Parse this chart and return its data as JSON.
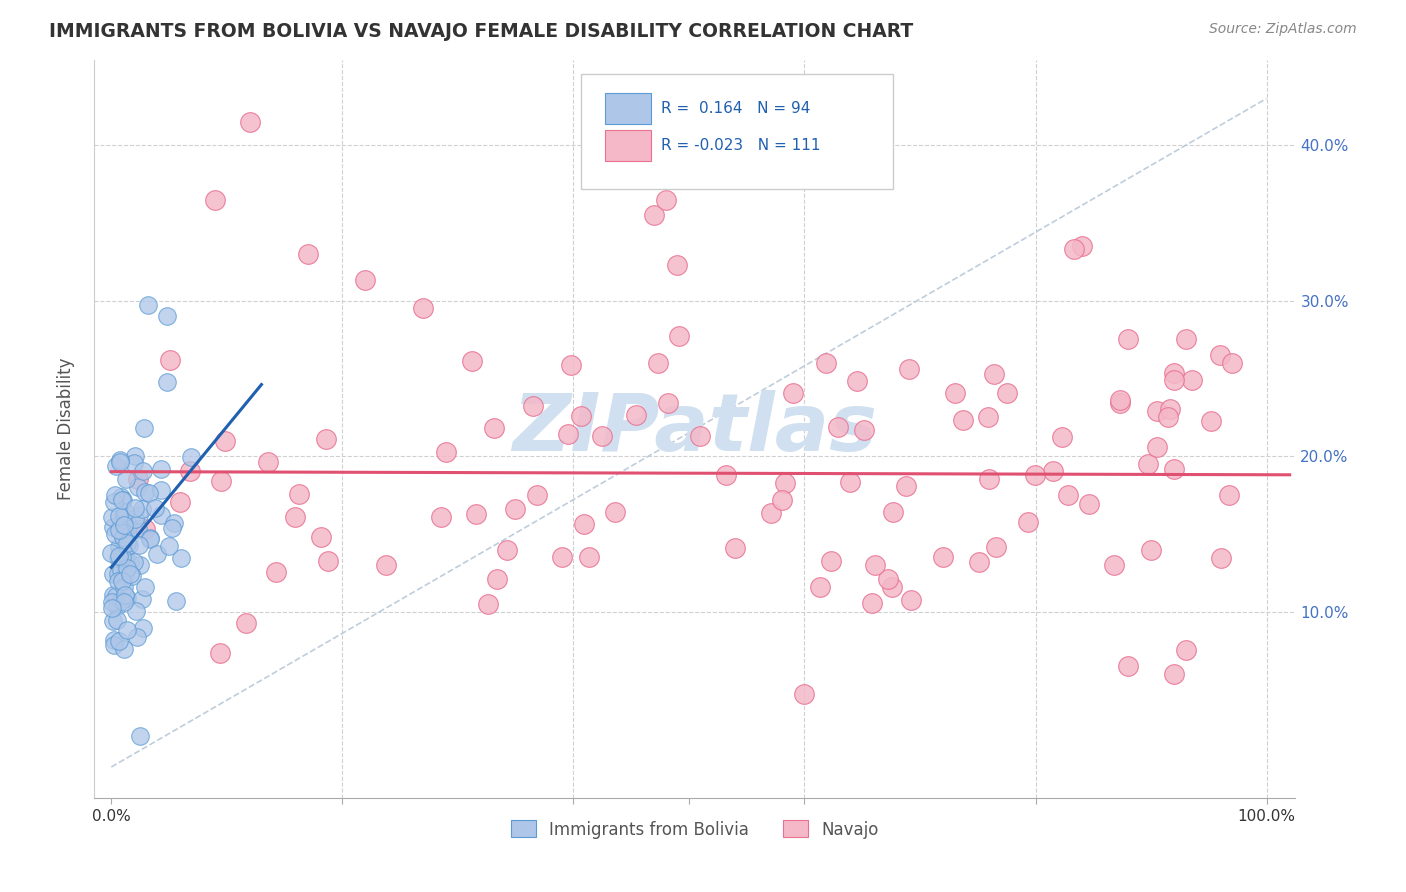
{
  "title": "IMMIGRANTS FROM BOLIVIA VS NAVAJO FEMALE DISABILITY CORRELATION CHART",
  "source": "Source: ZipAtlas.com",
  "ylabel": "Female Disability",
  "legend_blue_r": "0.164",
  "legend_blue_n": "94",
  "legend_pink_r": "-0.023",
  "legend_pink_n": "111",
  "legend_blue_label": "Immigrants from Bolivia",
  "legend_pink_label": "Navajo",
  "blue_face_color": "#aec6e8",
  "blue_edge_color": "#5b9bd5",
  "pink_face_color": "#f4b8c8",
  "pink_edge_color": "#e87090",
  "blue_line_color": "#2060b0",
  "pink_line_color": "#e05070",
  "diagonal_color": "#b8c8d8",
  "watermark_color": "#d0e0f0",
  "grid_color": "#d0d0d0",
  "title_color": "#333333",
  "source_color": "#888888",
  "ytick_color": "#4472c4",
  "xtick_color": "#333333"
}
